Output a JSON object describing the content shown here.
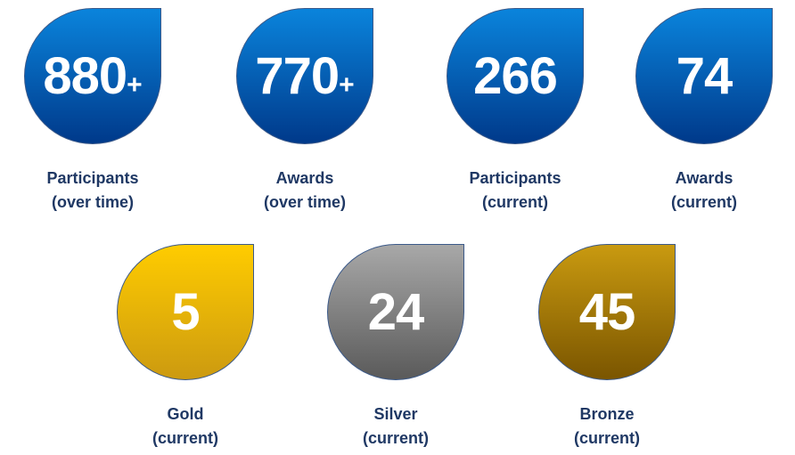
{
  "tiles": [
    {
      "number": "880",
      "suffix": "+",
      "label": [
        "Participants",
        "(over time)"
      ],
      "gradient": [
        "#0a84dc",
        "#00398a"
      ]
    },
    {
      "number": "770",
      "suffix": "+",
      "label": [
        "Awards",
        "(over time)"
      ],
      "gradient": [
        "#0a84dc",
        "#00398a"
      ]
    },
    {
      "number": "266",
      "label": [
        "Participants",
        "(current)"
      ],
      "gradient": [
        "#0a84dc",
        "#00398a"
      ]
    },
    {
      "number": "74",
      "label": [
        "Awards",
        "(current)"
      ],
      "gradient": [
        "#0a84dc",
        "#00398a"
      ]
    },
    {
      "number": "5",
      "label": [
        "Gold",
        "(current)"
      ],
      "gradient": [
        "#ffcc00",
        "#cc9a10"
      ]
    },
    {
      "number": "24",
      "label": [
        "Silver",
        "(current)"
      ],
      "gradient": [
        "#a8a8a8",
        "#5a5a5a"
      ]
    },
    {
      "number": "45",
      "label": [
        "Bronze",
        "(current)"
      ],
      "gradient": [
        "#c99a10",
        "#7a5500"
      ]
    }
  ]
}
